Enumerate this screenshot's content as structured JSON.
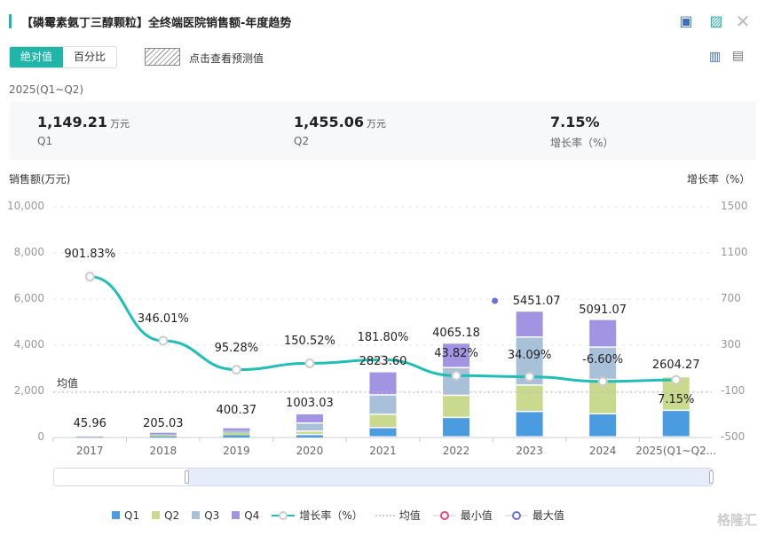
{
  "header": {
    "title": "【磷霉素氨丁三醇颗粒】全终端医院销售额-年度趋势",
    "icons": [
      "excel-export-icon",
      "image-export-icon",
      "close-icon"
    ]
  },
  "toolbar": {
    "absolute_label": "绝对值",
    "percent_label": "百分比",
    "forecast_label": "点击查看预测值",
    "icons": [
      "bar-chart-icon",
      "table-icon"
    ]
  },
  "summary": {
    "period": "2025(Q1~Q2)",
    "items": [
      {
        "value": "1,149.21",
        "unit": "万元",
        "label": "Q1"
      },
      {
        "value": "1,455.06",
        "unit": "万元",
        "label": "Q2"
      },
      {
        "value": "7.15%",
        "unit": "",
        "label": "增长率（%）"
      }
    ]
  },
  "chart_data": {
    "type": "bar+line",
    "ylabel_left": "销售额(万元)",
    "ylabel_right": "增长率（%）",
    "ylim_left": [
      0,
      10000
    ],
    "yticks_left": [
      "0",
      "2,000",
      "4,000",
      "6,000",
      "8,000",
      "10,000"
    ],
    "ylim_right": [
      -500,
      1500
    ],
    "yticks_right": [
      "-500",
      "-100",
      "300",
      "700",
      "1100",
      "1500"
    ],
    "categories": [
      "2017",
      "2018",
      "2019",
      "2020",
      "2021",
      "2022",
      "2023",
      "2024",
      "2025(Q1~Q2..."
    ],
    "series": [
      {
        "name": "Q1",
        "color": "#4a9be0",
        "values": [
          10,
          50,
          100,
          100,
          400,
          840,
          1100,
          1000,
          1149.21
        ]
      },
      {
        "name": "Q2",
        "color": "#c9d98e",
        "values": [
          11,
          50,
          100,
          150,
          580,
          960,
          1145,
          1490,
          1455.06
        ]
      },
      {
        "name": "Q3",
        "color": "#a8c0d8",
        "values": [
          12,
          52,
          100,
          350,
          840,
          1200,
          2080,
          1400,
          0
        ]
      },
      {
        "name": "Q4",
        "color": "#a393e3",
        "values": [
          12.96,
          53.03,
          100.37,
          403.03,
          1003.6,
          1065.18,
          1126.07,
          1201.07,
          0
        ]
      }
    ],
    "totals": [
      "45.96",
      "205.03",
      "400.37",
      "1003.03",
      "2823.60",
      "4065.18",
      "5451.07",
      "5091.07",
      "2604.27"
    ],
    "growth": {
      "name": "增长率（%）",
      "color": "#1fbfb8",
      "values": [
        901.83,
        346.01,
        95.28,
        150.52,
        181.8,
        43.82,
        34.09,
        -6.6,
        7.15
      ],
      "labels": [
        "901.83%",
        "346.01%",
        "95.28%",
        "150.52%",
        "181.80%",
        "43.82%",
        "34.09%",
        "-6.60%",
        "7.15%"
      ]
    },
    "average": {
      "label": "均值",
      "value": 1960
    },
    "max_marker_index": 6,
    "grid": "dashed horizontal",
    "legend_position": "bottom",
    "legend": [
      "Q1",
      "Q2",
      "Q3",
      "Q4",
      "增长率（%）",
      "均值",
      "最小值",
      "最大值"
    ]
  },
  "watermark": "格隆汇"
}
